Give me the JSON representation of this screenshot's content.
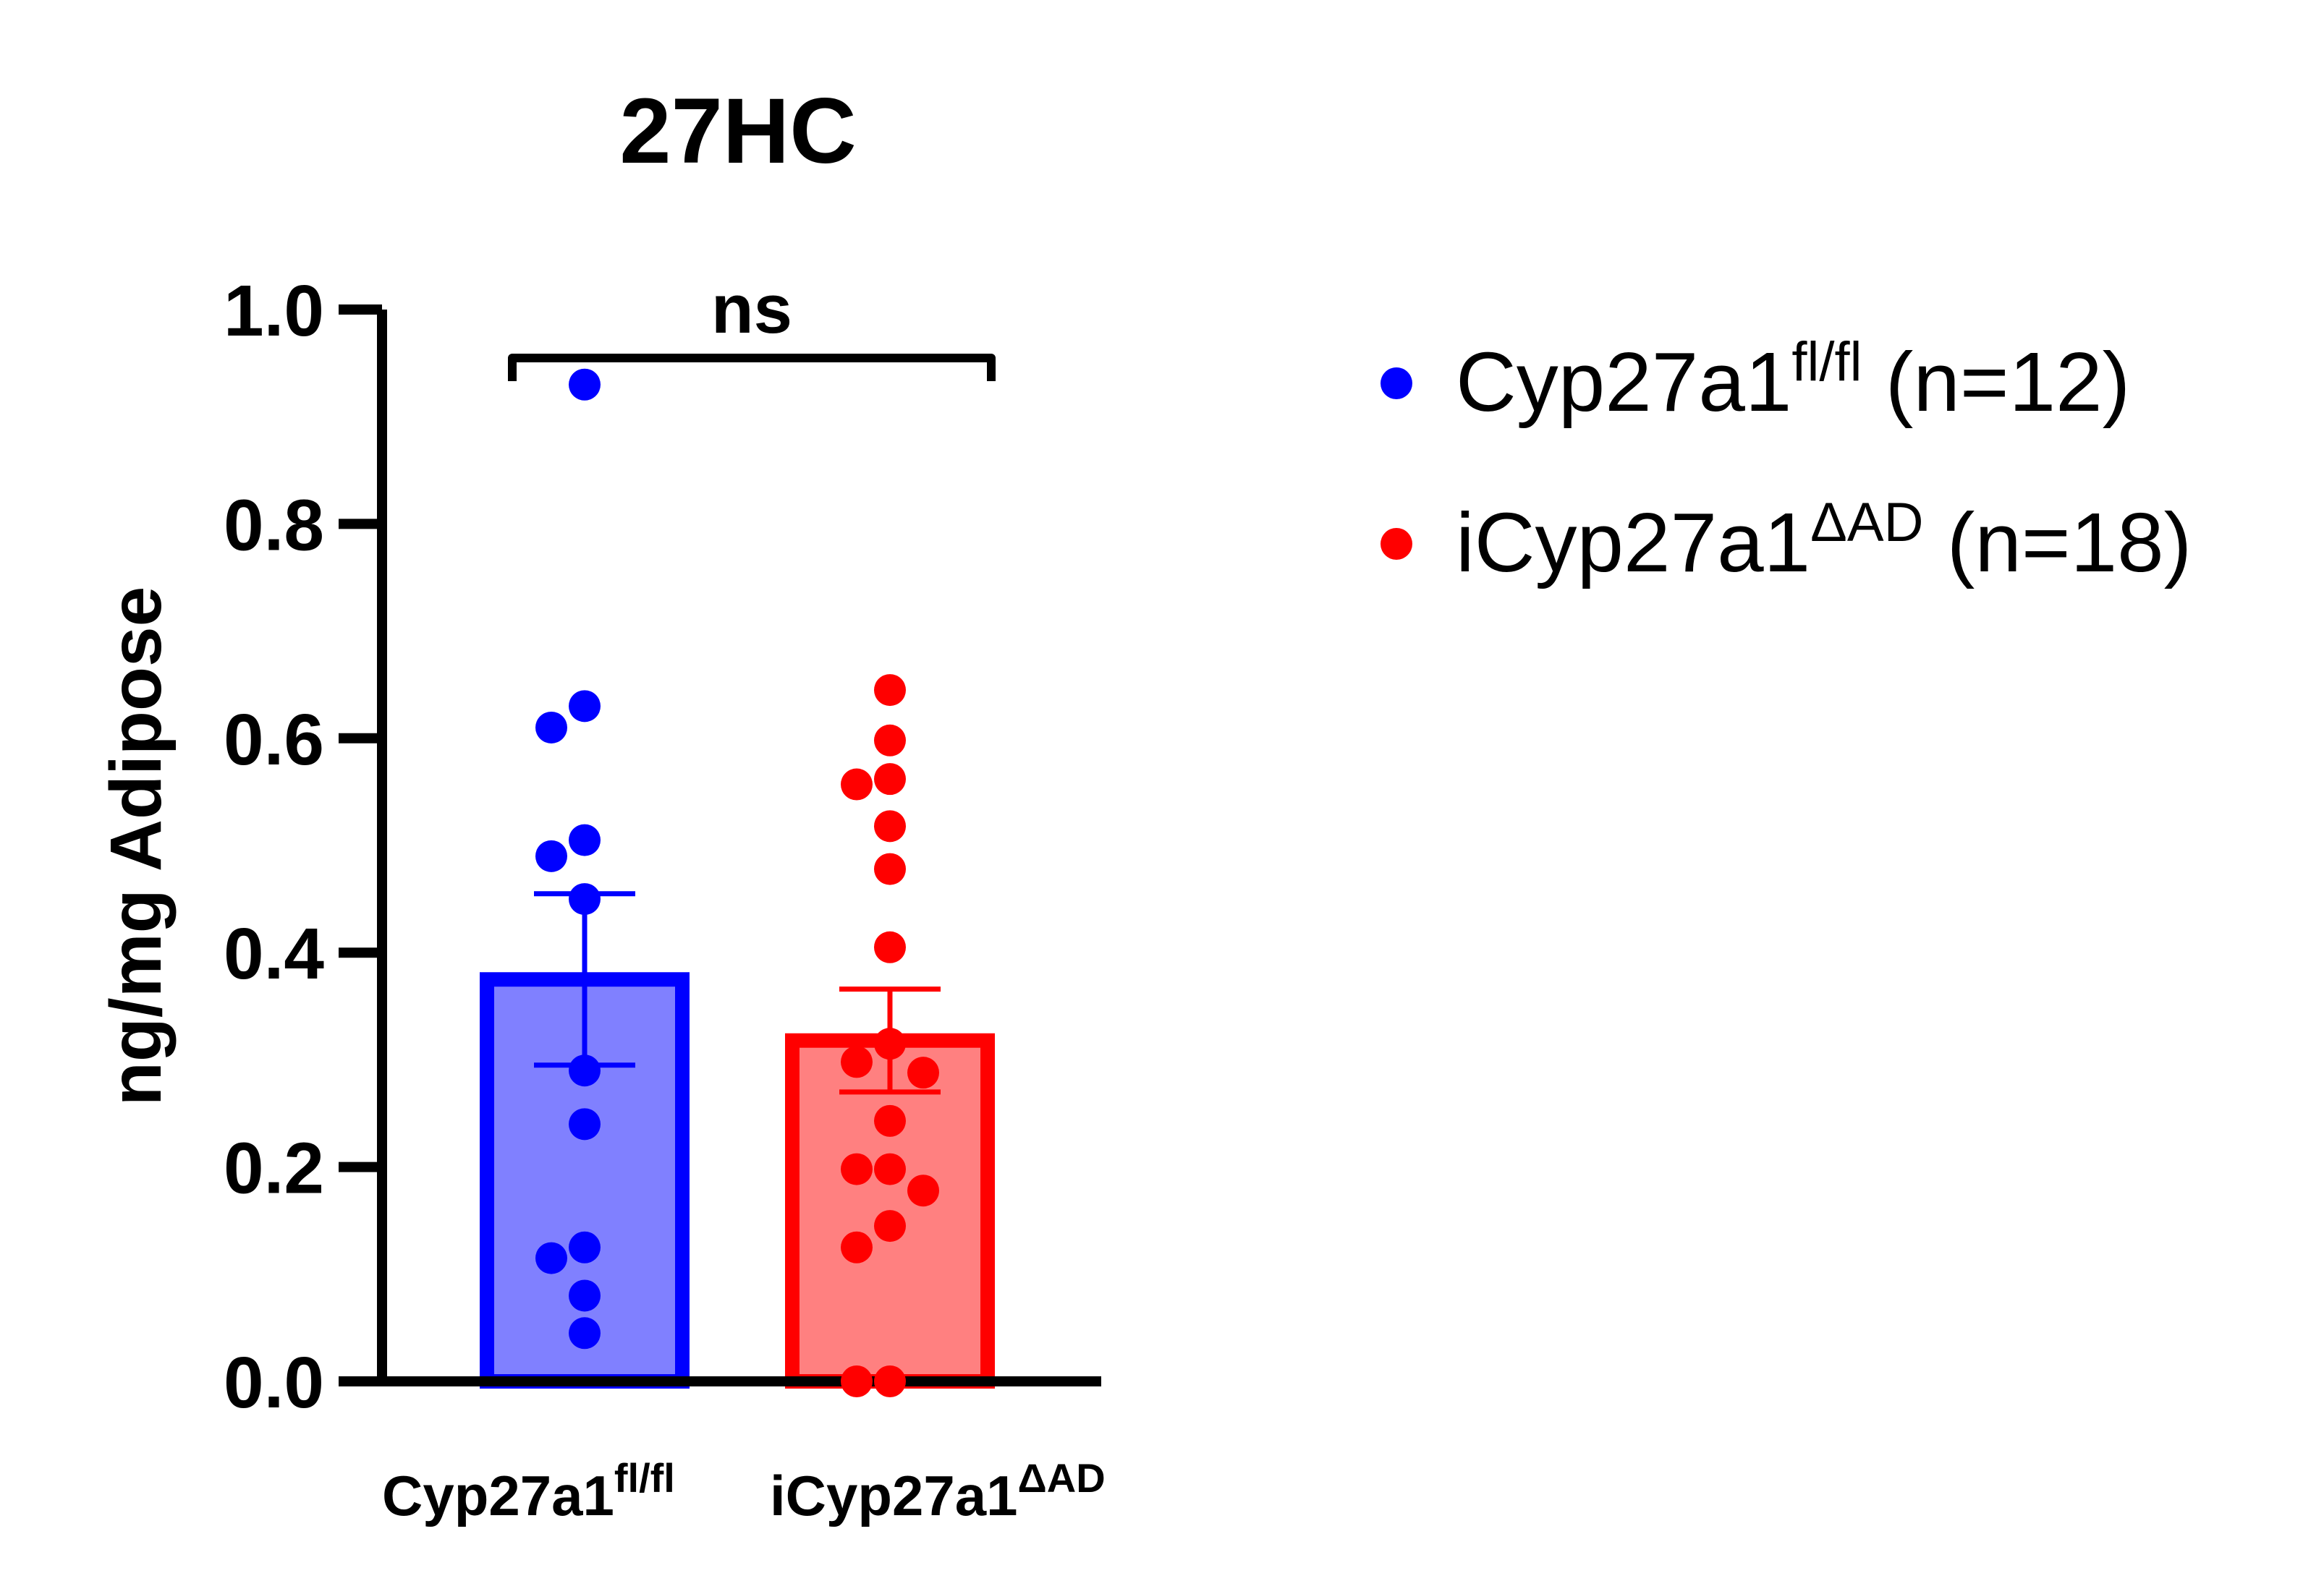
{
  "chart_data": {
    "type": "bar",
    "title": "27HC",
    "ylabel": "ng/mg Adipose",
    "ylim": [
      0,
      1.0
    ],
    "yticks": [
      "0.0",
      "0.2",
      "0.4",
      "0.6",
      "0.8",
      "1.0"
    ],
    "categories": [
      {
        "base": "Cyp27a1",
        "sup": "fl/fl"
      },
      {
        "base": "iCyp27a1",
        "sup": "ΔAD"
      }
    ],
    "series": [
      {
        "legend_base": "Cyp27a1",
        "legend_sup": "fl/fl",
        "legend_suffix": " (n=12)",
        "mean": 0.375,
        "sem": 0.08,
        "color": "#0000ff",
        "fill": "#8080ff",
        "points": [
          0.93,
          0.63,
          0.61,
          0.505,
          0.49,
          0.45,
          0.29,
          0.24,
          0.125,
          0.115,
          0.08,
          0.045
        ]
      },
      {
        "legend_base": "iCyp27a1",
        "legend_sup": "ΔAD",
        "legend_suffix": " (n=18)",
        "mean": 0.318,
        "sem": 0.048,
        "color": "#ff0000",
        "fill": "#ff8080",
        "points": [
          0.645,
          0.598,
          0.562,
          0.557,
          0.518,
          0.478,
          0.405,
          0.315,
          0.298,
          0.288,
          0.243,
          0.198,
          0.198,
          0.178,
          0.145,
          0.125,
          0.0,
          0.0
        ]
      }
    ],
    "annotation": "ns",
    "legend_position": "right"
  }
}
